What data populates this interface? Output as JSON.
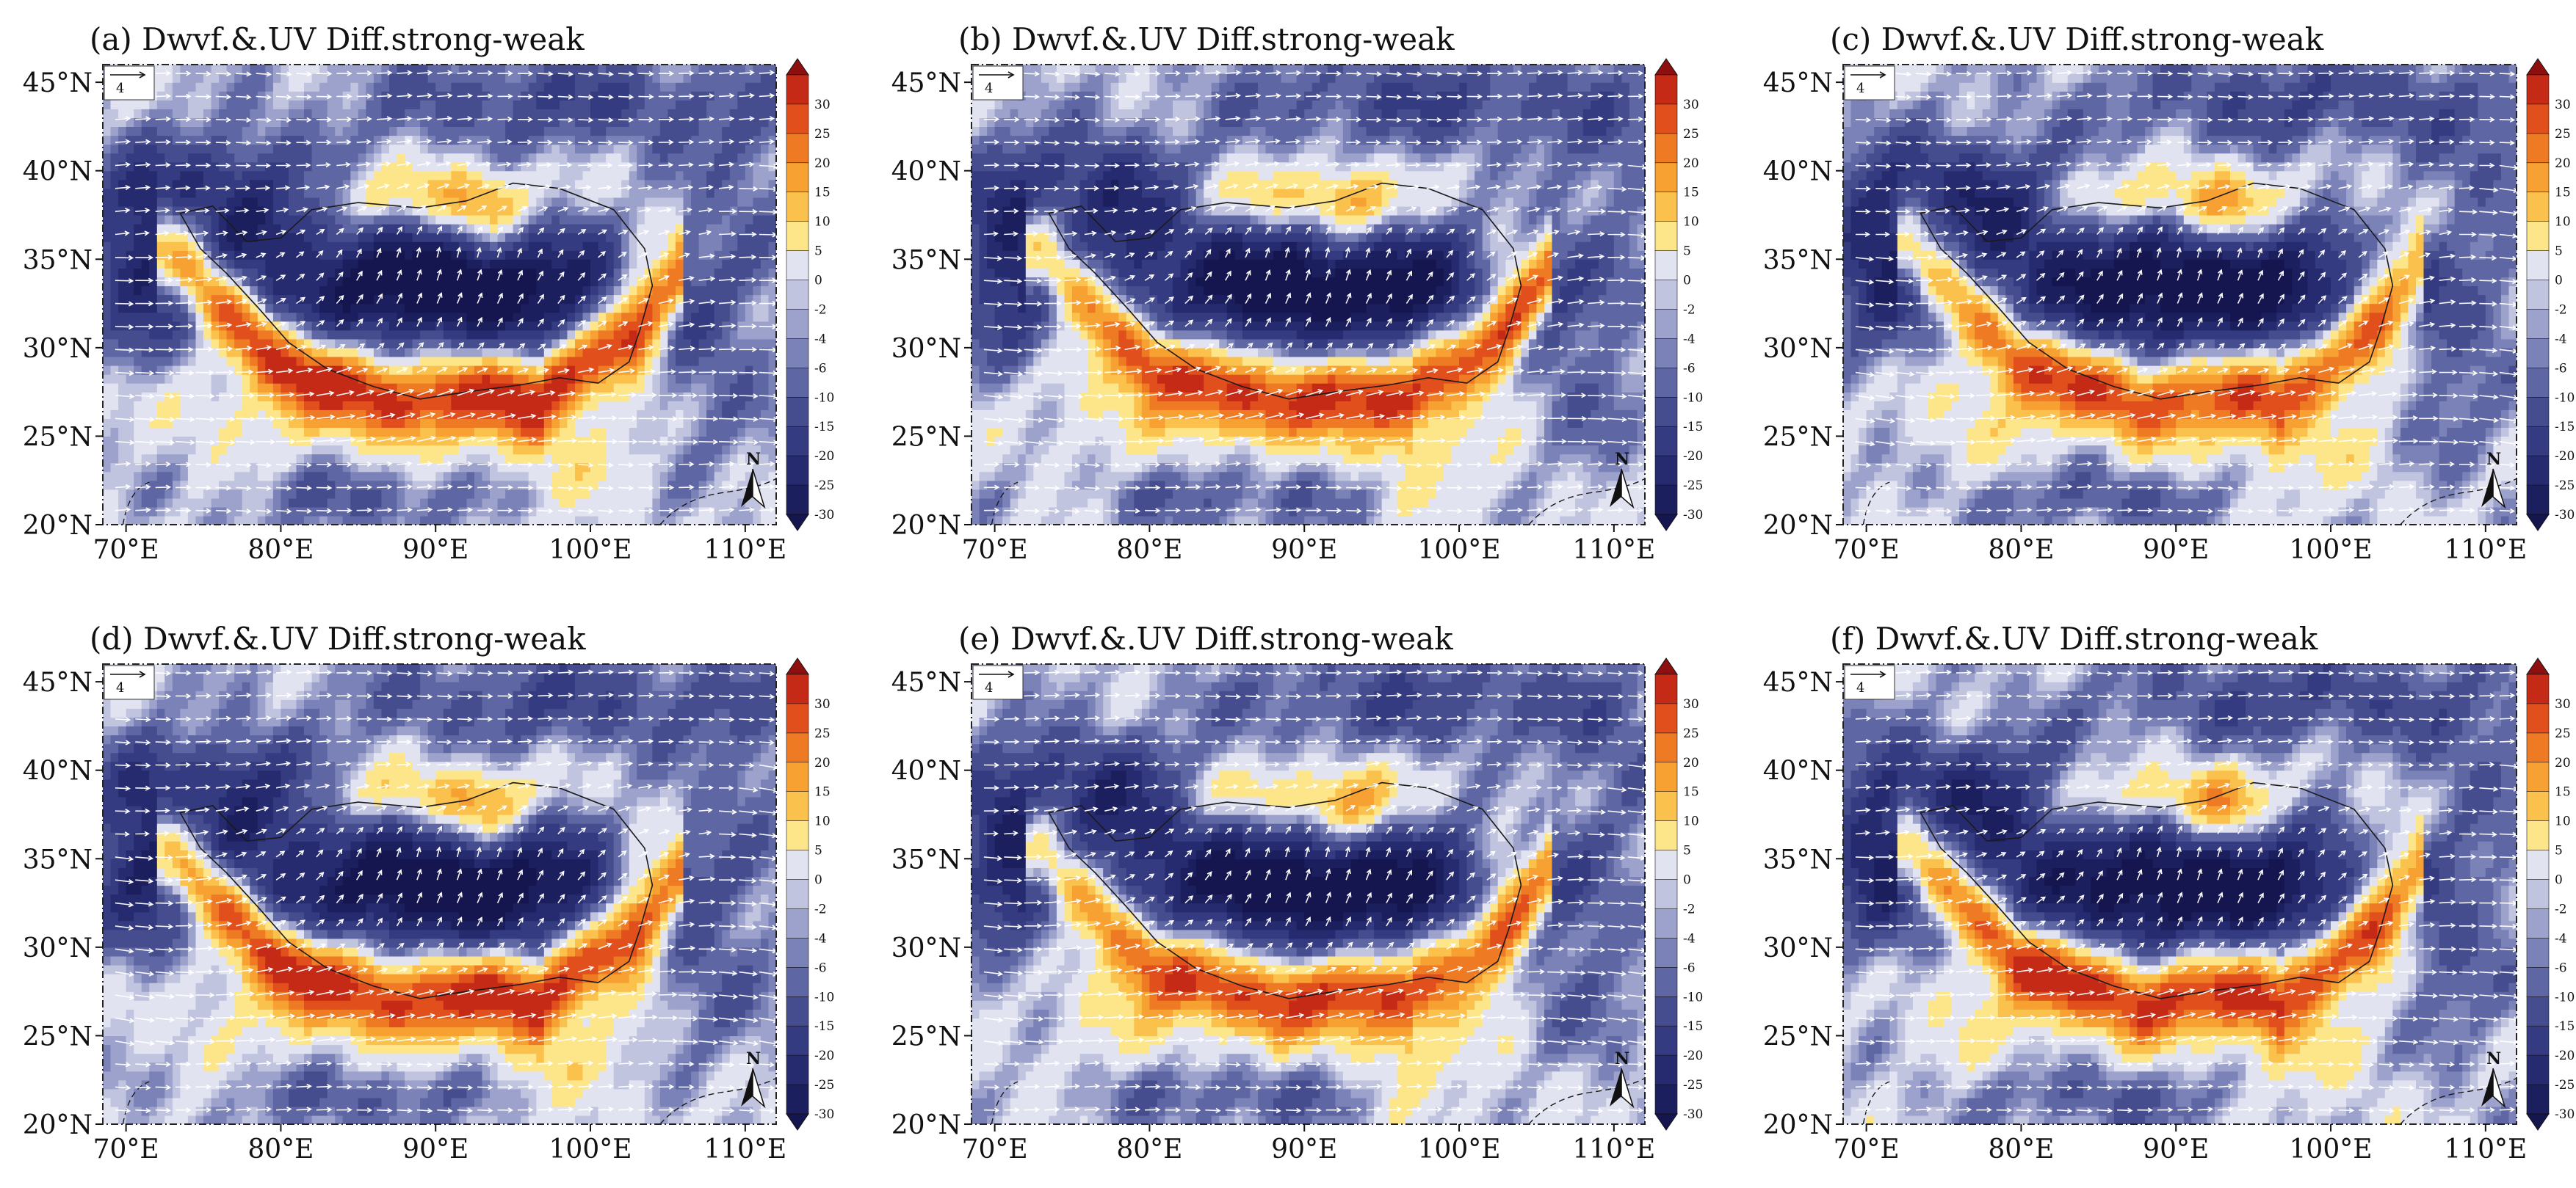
{
  "figure": {
    "panel_order": [
      "a",
      "b",
      "c",
      "d",
      "e",
      "f"
    ],
    "colors": {
      "contour_levels": [
        -30,
        -25,
        -20,
        -15,
        -10,
        -6,
        -4,
        -2,
        0,
        5,
        10,
        15,
        20,
        25,
        30
      ],
      "fill_colors": [
        "#15154f",
        "#1c1f5e",
        "#262b70",
        "#353b80",
        "#464d8f",
        "#5e66a3",
        "#7b82b7",
        "#9ca2cb",
        "#c0c4df",
        "#e2e3f1",
        "#fde68a",
        "#fbc14d",
        "#f7a133",
        "#ee7a24",
        "#e04f1c",
        "#c42a16",
        "#8e0f0f"
      ],
      "land_outline": "#1a1a1a",
      "vector_color": "#ffffff"
    }
  },
  "chart_data": [
    {
      "panel": "a",
      "type": "contour-vector-map",
      "title": "(a) Dwvf.&.UV Diff.strong-weak",
      "x_ticks": [
        "70°E",
        "80°E",
        "90°E",
        "100°E",
        "110°E"
      ],
      "y_ticks": [
        "45°N",
        "40°N",
        "35°N",
        "30°N",
        "25°N",
        "20°N"
      ],
      "xlim": [
        68.5,
        112
      ],
      "ylim": [
        20,
        46
      ],
      "reference_vector": "4",
      "north_arrow": "N",
      "colorbar": {
        "labels": [
          "30",
          "25",
          "20",
          "15",
          "10",
          "5",
          "0",
          "-2",
          "-4",
          "-6",
          "-10",
          "-15",
          "-20",
          "-25",
          "-30"
        ]
      }
    },
    {
      "panel": "b",
      "type": "contour-vector-map",
      "title": "(b) Dwvf.&.UV Diff.strong-weak",
      "x_ticks": [
        "70°E",
        "80°E",
        "90°E",
        "100°E",
        "110°E"
      ],
      "y_ticks": [
        "45°N",
        "40°N",
        "35°N",
        "30°N",
        "25°N",
        "20°N"
      ],
      "xlim": [
        68.5,
        112
      ],
      "ylim": [
        20,
        46
      ],
      "reference_vector": "4",
      "north_arrow": "N",
      "colorbar": {
        "labels": [
          "30",
          "25",
          "20",
          "15",
          "10",
          "5",
          "0",
          "-2",
          "-4",
          "-6",
          "-10",
          "-15",
          "-20",
          "-25",
          "-30"
        ]
      }
    },
    {
      "panel": "c",
      "type": "contour-vector-map",
      "title": "(c) Dwvf.&.UV Diff.strong-weak",
      "x_ticks": [
        "70°E",
        "80°E",
        "90°E",
        "100°E",
        "110°E"
      ],
      "y_ticks": [
        "45°N",
        "40°N",
        "35°N",
        "30°N",
        "25°N",
        "20°N"
      ],
      "xlim": [
        68.5,
        112
      ],
      "ylim": [
        20,
        46
      ],
      "reference_vector": "4",
      "north_arrow": "N",
      "colorbar": {
        "labels": [
          "30",
          "25",
          "20",
          "15",
          "10",
          "5",
          "0",
          "-2",
          "-4",
          "-6",
          "-10",
          "-15",
          "-20",
          "-25",
          "-30"
        ]
      }
    },
    {
      "panel": "d",
      "type": "contour-vector-map",
      "title": "(d) Dwvf.&.UV Diff.strong-weak",
      "x_ticks": [
        "70°E",
        "80°E",
        "90°E",
        "100°E",
        "110°E"
      ],
      "y_ticks": [
        "45°N",
        "40°N",
        "35°N",
        "30°N",
        "25°N",
        "20°N"
      ],
      "xlim": [
        68.5,
        112
      ],
      "ylim": [
        20,
        46
      ],
      "reference_vector": "4",
      "north_arrow": "N",
      "colorbar": {
        "labels": [
          "30",
          "25",
          "20",
          "15",
          "10",
          "5",
          "0",
          "-2",
          "-4",
          "-6",
          "-10",
          "-15",
          "-20",
          "-25",
          "-30"
        ]
      }
    },
    {
      "panel": "e",
      "type": "contour-vector-map",
      "title": "(e) Dwvf.&.UV Diff.strong-weak",
      "x_ticks": [
        "70°E",
        "80°E",
        "90°E",
        "100°E",
        "110°E"
      ],
      "y_ticks": [
        "45°N",
        "40°N",
        "35°N",
        "30°N",
        "25°N",
        "20°N"
      ],
      "xlim": [
        68.5,
        112
      ],
      "ylim": [
        20,
        46
      ],
      "reference_vector": "4",
      "north_arrow": "N",
      "colorbar": {
        "labels": [
          "30",
          "25",
          "20",
          "15",
          "10",
          "5",
          "0",
          "-2",
          "-4",
          "-6",
          "-10",
          "-15",
          "-20",
          "-25",
          "-30"
        ]
      }
    },
    {
      "panel": "f",
      "type": "contour-vector-map",
      "title": "(f) Dwvf.&.UV Diff.strong-weak",
      "x_ticks": [
        "70°E",
        "80°E",
        "90°E",
        "100°E",
        "110°E"
      ],
      "y_ticks": [
        "45°N",
        "40°N",
        "35°N",
        "30°N",
        "25°N",
        "20°N"
      ],
      "xlim": [
        68.5,
        112
      ],
      "ylim": [
        20,
        46
      ],
      "reference_vector": "4",
      "north_arrow": "N",
      "colorbar": {
        "labels": [
          "30",
          "25",
          "20",
          "15",
          "10",
          "5",
          "0",
          "-2",
          "-4",
          "-6",
          "-10",
          "-15",
          "-20",
          "-25",
          "-30"
        ]
      }
    }
  ]
}
